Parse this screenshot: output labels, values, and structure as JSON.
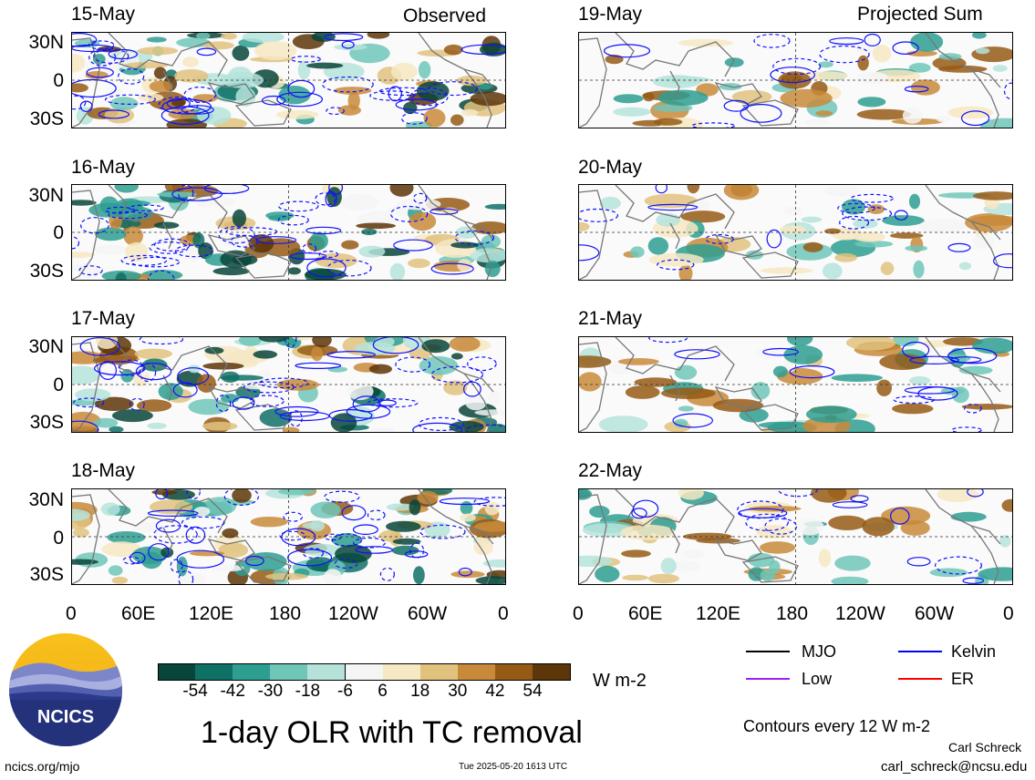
{
  "headers": {
    "left": "Observed",
    "right": "Projected Sum"
  },
  "panels": [
    {
      "date": "15-May"
    },
    {
      "date": "16-May"
    },
    {
      "date": "17-May"
    },
    {
      "date": "18-May"
    },
    {
      "date": "19-May"
    },
    {
      "date": "20-May"
    },
    {
      "date": "21-May"
    },
    {
      "date": "22-May"
    }
  ],
  "lat_labels": [
    "30N",
    "0",
    "30S"
  ],
  "lon_labels": [
    "0",
    "60E",
    "120E",
    "180",
    "120W",
    "60W",
    "0"
  ],
  "colorbar": {
    "colors": [
      "#08453a",
      "#0f7066",
      "#2e9e90",
      "#6fc6b8",
      "#b5e3da",
      "#f5f5f5",
      "#f6e8c3",
      "#e0c27e",
      "#c88a3a",
      "#955a15",
      "#5c3508"
    ],
    "labels": [
      "-54",
      "-42",
      "-30",
      "-18",
      "-6",
      "6",
      "18",
      "30",
      "42",
      "54"
    ],
    "units": "W m-2"
  },
  "legend": {
    "items": [
      {
        "label": "MJO",
        "color": "#000000"
      },
      {
        "label": "Kelvin",
        "color": "#0000ff"
      },
      {
        "label": "Low",
        "color": "#a020f0"
      },
      {
        "label": "ER",
        "color": "#ff0000"
      }
    ],
    "contours_note": "Contours every 12 W m-2"
  },
  "logo": {
    "text": "NCICS"
  },
  "title": "1-day OLR with TC removal",
  "footer": {
    "url": "ncics.org/mjo",
    "timestamp": "Tue 2025-05-20 1613 UTC",
    "author": "Carl Schreck",
    "email": "carl_schreck@ncsu.edu"
  }
}
